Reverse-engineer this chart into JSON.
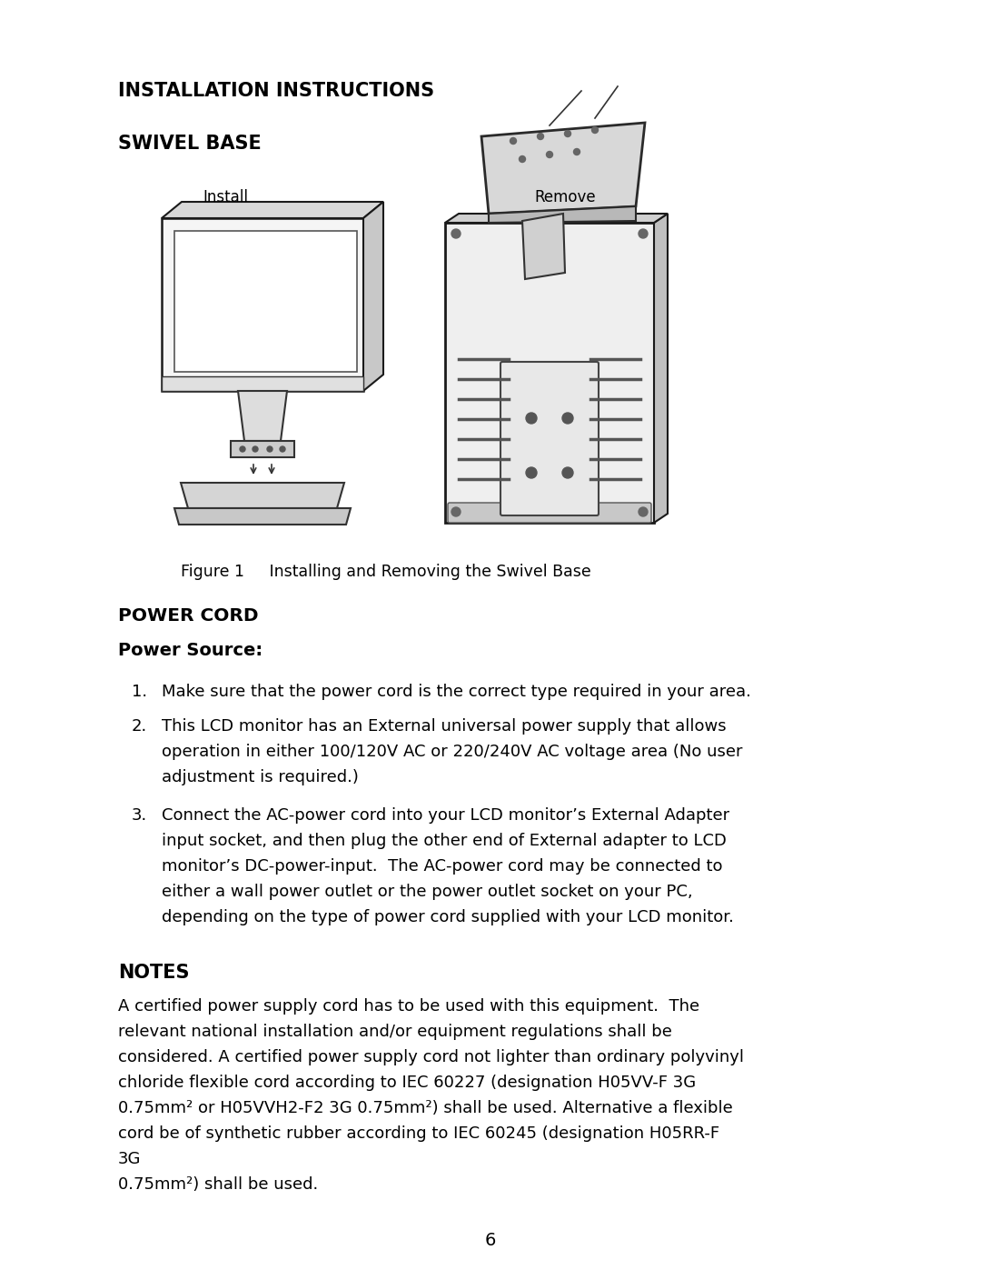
{
  "bg_color": "#ffffff",
  "text_color": "#000000",
  "title1": "INSTALLATION INSTRUCTIONS",
  "title2": "SWIVEL BASE",
  "fig_caption": "Figure 1     Installing and Removing the Swivel Base",
  "section_power_cord": "POWER CORD",
  "section_power_source": "Power Source:",
  "notes_title": "NOTES",
  "page_number": "6",
  "install_label": "Install",
  "remove_label": "Remove",
  "item1": "Make sure that the power cord is the correct type required in your area.",
  "item2_lines": [
    "This LCD monitor has an External universal power supply that allows",
    "operation in either 100/120V AC or 220/240V AC voltage area (No user",
    "adjustment is required.)"
  ],
  "item3_lines": [
    "Connect the AC-power cord into your LCD monitor’s External Adapter",
    "input socket, and then plug the other end of External adapter to LCD",
    "monitor’s DC-power-input.  The AC-power cord may be connected to",
    "either a wall power outlet or the power outlet socket on your PC,",
    "depending on the type of power cord supplied with your LCD monitor."
  ],
  "notes_lines": [
    "A certified power supply cord has to be used with this equipment.  The",
    "relevant national installation and/or equipment regulations shall be",
    "considered. A certified power supply cord not lighter than ordinary polyvinyl",
    "chloride flexible cord according to IEC 60227 (designation H05VV-F 3G",
    "0.75mm² or H05VVH2-F2 3G 0.75mm²) shall be used. Alternative a flexible",
    "cord be of synthetic rubber according to IEC 60245 (designation H05RR-F",
    "3G",
    "0.75mm²) shall be used."
  ]
}
